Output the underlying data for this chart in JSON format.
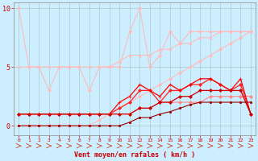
{
  "background_color": "#cceeff",
  "grid_color": "#aacccc",
  "xlabel": "Vent moyen/en rafales ( km/h )",
  "xlabel_color": "#cc0000",
  "tick_color": "#cc0000",
  "spine_color": "#888888",
  "ylim": [
    -0.8,
    10.5
  ],
  "xlim": [
    -0.5,
    23.5
  ],
  "yticks": [
    0,
    5,
    10
  ],
  "xticks": [
    0,
    1,
    2,
    3,
    4,
    5,
    6,
    7,
    8,
    9,
    10,
    11,
    12,
    13,
    14,
    15,
    16,
    17,
    18,
    19,
    20,
    21,
    22,
    23
  ],
  "series": [
    {
      "x": [
        0,
        1,
        2,
        3,
        4,
        5,
        6,
        7,
        8,
        9,
        10,
        11,
        12,
        13,
        14,
        15,
        16,
        17,
        18,
        19,
        20,
        21,
        22,
        23
      ],
      "y": [
        10,
        5,
        5,
        3,
        5,
        5,
        5,
        3,
        5,
        5,
        5,
        8,
        10,
        5,
        6,
        8,
        7,
        8,
        8,
        8,
        8,
        8,
        8,
        8
      ],
      "color": "#ffbbbb",
      "marker": "D",
      "markersize": 2,
      "linewidth": 0.8
    },
    {
      "x": [
        0,
        1,
        2,
        3,
        4,
        5,
        6,
        7,
        8,
        9,
        10,
        11,
        12,
        13,
        14,
        15,
        16,
        17,
        18,
        19,
        20,
        21,
        22,
        23
      ],
      "y": [
        5,
        5,
        5,
        5,
        5,
        5,
        5,
        5,
        5,
        5,
        5.5,
        6,
        6,
        6,
        6.5,
        6.5,
        7,
        7,
        7.5,
        7.5,
        8,
        8,
        8,
        8
      ],
      "color": "#ffbbbb",
      "marker": "^",
      "markersize": 2,
      "linewidth": 0.8
    },
    {
      "x": [
        0,
        1,
        2,
        3,
        4,
        5,
        6,
        7,
        8,
        9,
        10,
        11,
        12,
        13,
        14,
        15,
        16,
        17,
        18,
        19,
        20,
        21,
        22,
        23
      ],
      "y": [
        0,
        0,
        0,
        0,
        0,
        0,
        0,
        0,
        0.5,
        1,
        1.5,
        2,
        2.5,
        3,
        3.5,
        4,
        4.5,
        5,
        5.5,
        6,
        6.5,
        7,
        7.5,
        8
      ],
      "color": "#ffbbbb",
      "marker": "D",
      "markersize": 2,
      "linewidth": 0.8
    },
    {
      "x": [
        0,
        1,
        2,
        3,
        4,
        5,
        6,
        7,
        8,
        9,
        10,
        11,
        12,
        13,
        14,
        15,
        16,
        17,
        18,
        19,
        20,
        21,
        22,
        23
      ],
      "y": [
        1,
        1,
        1,
        1,
        1,
        1,
        1,
        1,
        1,
        1,
        1,
        1,
        1.5,
        1.5,
        2,
        2,
        2,
        2,
        2,
        2.5,
        2.5,
        2.5,
        2.5,
        2.5
      ],
      "color": "#ff8888",
      "marker": "D",
      "markersize": 2,
      "linewidth": 0.8
    },
    {
      "x": [
        0,
        1,
        2,
        3,
        4,
        5,
        6,
        7,
        8,
        9,
        10,
        11,
        12,
        13,
        14,
        15,
        16,
        17,
        18,
        19,
        20,
        21,
        22,
        23
      ],
      "y": [
        1,
        1,
        1,
        1,
        1,
        1,
        1,
        1,
        1,
        1,
        1.5,
        2,
        3,
        3,
        2,
        3,
        3,
        3.5,
        3.5,
        4,
        3.5,
        3,
        3.5,
        1
      ],
      "color": "#ff2222",
      "marker": "D",
      "markersize": 2,
      "linewidth": 0.9
    },
    {
      "x": [
        0,
        1,
        2,
        3,
        4,
        5,
        6,
        7,
        8,
        9,
        10,
        11,
        12,
        13,
        14,
        15,
        16,
        17,
        18,
        19,
        20,
        21,
        22,
        23
      ],
      "y": [
        1,
        1,
        1,
        1,
        1,
        1,
        1,
        1,
        1,
        1,
        2,
        2.5,
        3.5,
        3,
        2.5,
        3.5,
        3,
        3.5,
        4,
        4,
        3.5,
        3,
        4,
        1
      ],
      "color": "#ff0000",
      "marker": "+",
      "markersize": 3,
      "linewidth": 0.9
    },
    {
      "x": [
        0,
        1,
        2,
        3,
        4,
        5,
        6,
        7,
        8,
        9,
        10,
        11,
        12,
        13,
        14,
        15,
        16,
        17,
        18,
        19,
        20,
        21,
        22,
        23
      ],
      "y": [
        1,
        1,
        1,
        1,
        1,
        1,
        1,
        1,
        1,
        1,
        1,
        1,
        1.5,
        1.5,
        2,
        2,
        2.5,
        2.5,
        3,
        3,
        3,
        3,
        3,
        1
      ],
      "color": "#cc0000",
      "marker": "D",
      "markersize": 2,
      "linewidth": 0.9
    },
    {
      "x": [
        0,
        1,
        2,
        3,
        4,
        5,
        6,
        7,
        8,
        9,
        10,
        11,
        12,
        13,
        14,
        15,
        16,
        17,
        18,
        19,
        20,
        21,
        22,
        23
      ],
      "y": [
        0,
        0,
        0,
        0,
        0,
        0,
        0,
        0,
        0,
        0,
        0,
        0.3,
        0.7,
        0.7,
        1,
        1.2,
        1.5,
        1.8,
        2,
        2,
        2,
        2,
        2,
        2
      ],
      "color": "#990000",
      "marker": "s",
      "markersize": 1.5,
      "linewidth": 0.8
    }
  ]
}
